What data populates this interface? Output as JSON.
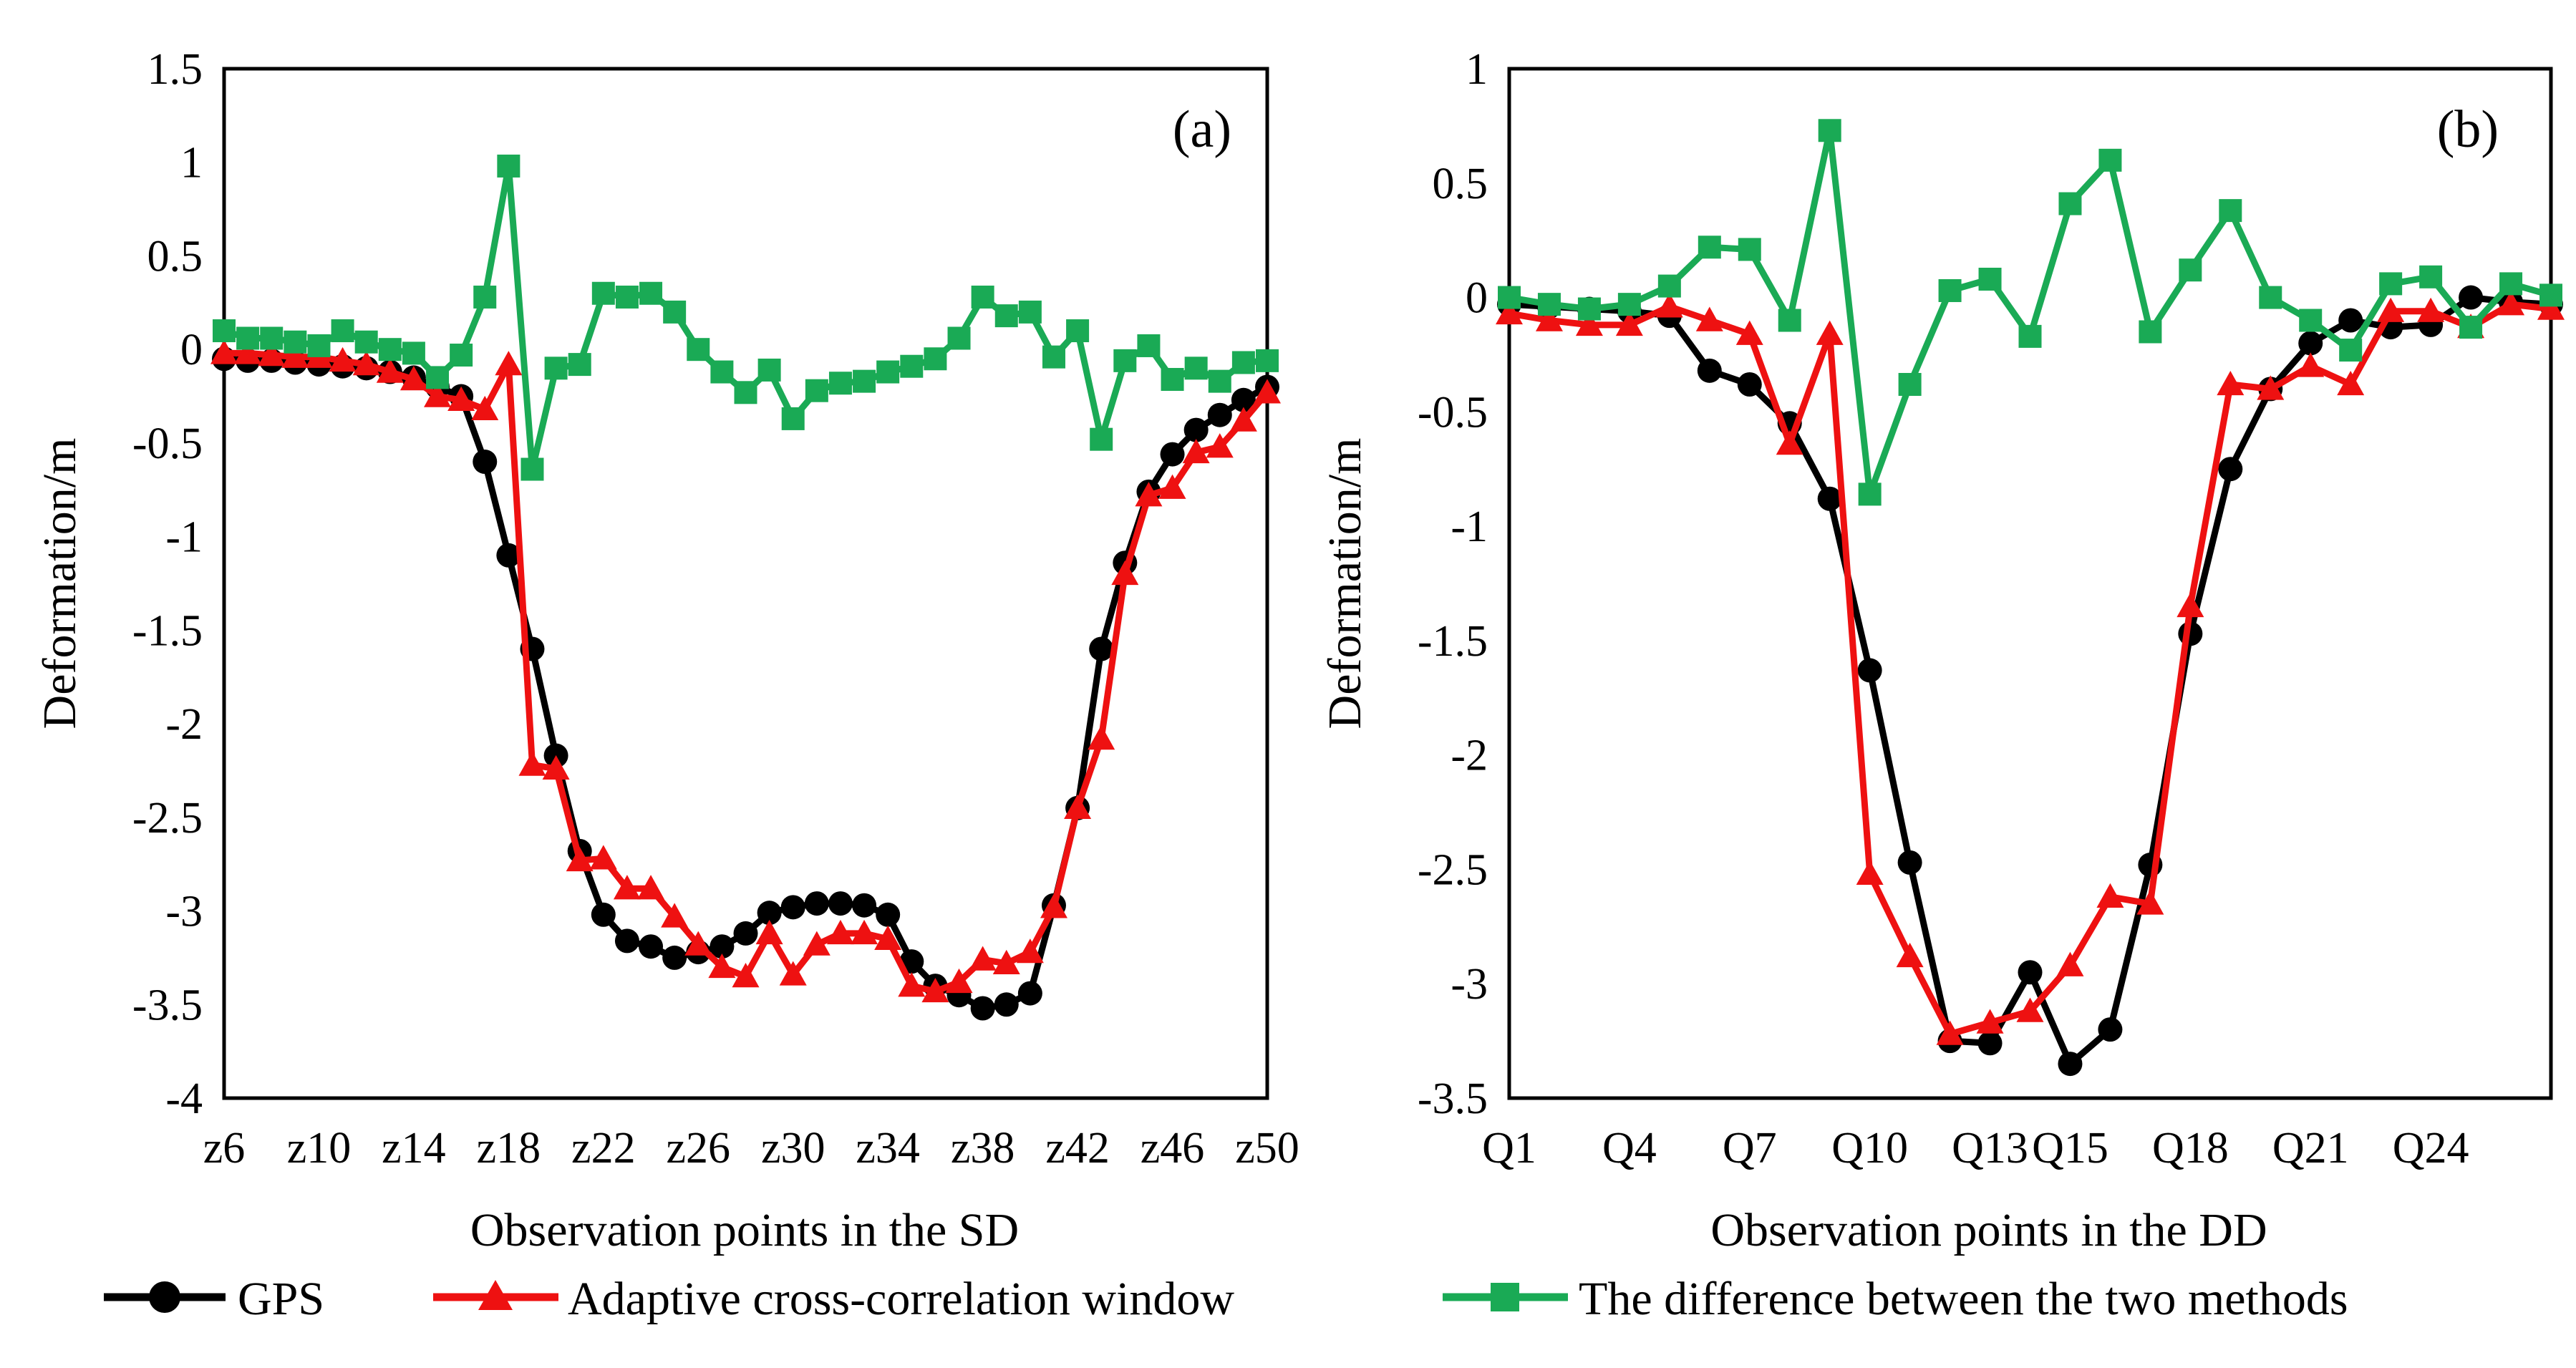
{
  "colors": {
    "gps": "#000000",
    "adaptive": "#ee1111",
    "difference": "#1aaa55"
  },
  "legend": {
    "gps": "GPS",
    "adaptive": "Adaptive cross-correlation window",
    "difference": "The difference between the two methods"
  },
  "chart_data": [
    {
      "type": "line",
      "panel_label": "(a)",
      "xlabel": "Observation points in the SD",
      "ylabel": "Deformation/m",
      "ylim": [
        -4,
        1.5
      ],
      "yticks": [
        1.5,
        1,
        0.5,
        0,
        -0.5,
        -1,
        -1.5,
        -2,
        -2.5,
        -3,
        -3.5,
        -4
      ],
      "ytick_labels": [
        "1.5",
        "1",
        "0.5",
        "0",
        "-0.5",
        "-1",
        "-1.5",
        "-2",
        "-2.5",
        "-3",
        "-3.5",
        "-4"
      ],
      "x_tick_labels": [
        "z6",
        "z10",
        "z14",
        "z18",
        "z22",
        "z26",
        "z30",
        "z34",
        "z38",
        "z42",
        "z46",
        "z50"
      ],
      "x_tick_positions": [
        6,
        10,
        14,
        18,
        22,
        26,
        30,
        34,
        38,
        42,
        46,
        50
      ],
      "xlim": [
        6,
        50
      ],
      "series": [
        {
          "name": "GPS",
          "x": [
            6,
            7,
            8,
            9,
            10,
            11,
            12,
            13,
            14,
            15,
            16,
            17,
            18,
            19,
            20,
            21,
            22,
            23,
            24,
            25,
            26,
            27,
            28,
            29,
            30,
            31,
            32,
            33,
            34,
            35,
            36,
            37,
            38,
            39,
            40,
            41,
            42,
            43,
            44,
            45,
            46,
            47,
            48,
            49,
            50
          ],
          "values": [
            -0.05,
            -0.06,
            -0.06,
            -0.07,
            -0.08,
            -0.09,
            -0.1,
            -0.12,
            -0.15,
            -0.2,
            -0.25,
            -0.6,
            -1.1,
            -1.6,
            -2.17,
            -2.68,
            -3.02,
            -3.16,
            -3.19,
            -3.25,
            -3.22,
            -3.19,
            -3.12,
            -3.01,
            -2.98,
            -2.96,
            -2.96,
            -2.97,
            -3.02,
            -3.27,
            -3.4,
            -3.45,
            -3.52,
            -3.5,
            -3.44,
            -2.97,
            -2.45,
            -1.6,
            -1.14,
            -0.76,
            -0.56,
            -0.43,
            -0.35,
            -0.27,
            -0.2
          ]
        },
        {
          "name": "Adaptive cross-correlation window",
          "x": [
            6,
            7,
            8,
            9,
            10,
            11,
            12,
            13,
            14,
            15,
            16,
            17,
            18,
            19,
            20,
            21,
            22,
            23,
            24,
            25,
            26,
            27,
            28,
            29,
            30,
            31,
            32,
            33,
            34,
            35,
            36,
            37,
            38,
            39,
            40,
            41,
            42,
            43,
            44,
            45,
            46,
            47,
            48,
            49,
            50
          ],
          "values": [
            -0.02,
            -0.02,
            -0.03,
            -0.04,
            -0.04,
            -0.06,
            -0.08,
            -0.12,
            -0.16,
            -0.25,
            -0.27,
            -0.32,
            -0.08,
            -2.22,
            -2.24,
            -2.73,
            -2.72,
            -2.88,
            -2.88,
            -3.03,
            -3.18,
            -3.3,
            -3.35,
            -3.12,
            -3.34,
            -3.18,
            -3.12,
            -3.12,
            -3.15,
            -3.4,
            -3.43,
            -3.38,
            -3.26,
            -3.28,
            -3.22,
            -2.98,
            -2.45,
            -2.08,
            -1.2,
            -0.78,
            -0.74,
            -0.55,
            -0.52,
            -0.38,
            -0.23
          ]
        },
        {
          "name": "The difference between the two methods",
          "x": [
            6,
            7,
            8,
            9,
            10,
            11,
            12,
            13,
            14,
            15,
            16,
            17,
            18,
            19,
            20,
            21,
            22,
            23,
            24,
            25,
            26,
            27,
            28,
            29,
            30,
            31,
            32,
            33,
            34,
            35,
            36,
            37,
            38,
            39,
            40,
            41,
            42,
            43,
            44,
            45,
            46,
            47,
            48,
            49,
            50
          ],
          "values": [
            0.1,
            0.06,
            0.06,
            0.04,
            0.02,
            0.1,
            0.04,
            0,
            -0.02,
            -0.15,
            -0.03,
            0.28,
            0.98,
            -0.64,
            -0.1,
            -0.08,
            0.3,
            0.28,
            0.3,
            0.2,
            0,
            -0.12,
            -0.23,
            -0.11,
            -0.37,
            -0.22,
            -0.18,
            -0.17,
            -0.12,
            -0.09,
            -0.05,
            0.06,
            0.28,
            0.18,
            0.2,
            -0.04,
            0.1,
            -0.48,
            -0.06,
            0.02,
            -0.16,
            -0.1,
            -0.17,
            -0.07,
            -0.06
          ]
        }
      ]
    },
    {
      "type": "line",
      "panel_label": "(b)",
      "xlabel": "Observation points in the DD",
      "ylabel": "Deformation/m",
      "ylim": [
        -3.5,
        1
      ],
      "yticks": [
        1,
        0.5,
        0,
        -0.5,
        -1,
        -1.5,
        -2,
        -2.5,
        -3,
        -3.5
      ],
      "ytick_labels": [
        "1",
        "0.5",
        "0",
        "-0.5",
        "-1",
        "-1.5",
        "-2",
        "-2.5",
        "-3",
        "-3.5"
      ],
      "x_tick_labels": [
        "Q1",
        "Q4",
        "Q7",
        "Q10",
        "Q13",
        "Q15",
        "Q18",
        "Q21",
        "Q24"
      ],
      "x_tick_positions": [
        1,
        4,
        7,
        10,
        13,
        15,
        18,
        21,
        24
      ],
      "xlim": [
        1,
        27
      ],
      "series": [
        {
          "name": "GPS",
          "x": [
            1,
            2,
            3,
            4,
            5,
            6,
            7,
            8,
            9,
            10,
            11,
            12,
            13,
            14,
            15,
            16,
            17,
            18,
            19,
            20,
            21,
            22,
            23,
            24,
            25,
            26,
            27
          ],
          "values": [
            -0.03,
            -0.04,
            -0.05,
            -0.06,
            -0.08,
            -0.32,
            -0.38,
            -0.55,
            -0.88,
            -1.63,
            -2.47,
            -3.25,
            -3.26,
            -2.95,
            -3.35,
            -3.2,
            -2.48,
            -1.47,
            -0.75,
            -0.4,
            -0.2,
            -0.1,
            -0.13,
            -0.12,
            0,
            -0.02,
            -0.03
          ]
        },
        {
          "name": "Adaptive cross-correlation window",
          "x": [
            1,
            2,
            3,
            4,
            5,
            6,
            7,
            8,
            9,
            10,
            11,
            12,
            13,
            14,
            15,
            16,
            17,
            18,
            19,
            20,
            21,
            22,
            23,
            24,
            25,
            26,
            27
          ],
          "values": [
            -0.07,
            -0.1,
            -0.12,
            -0.12,
            -0.04,
            -0.1,
            -0.16,
            -0.64,
            -0.16,
            -2.52,
            -2.88,
            -3.22,
            -3.17,
            -3.12,
            -2.92,
            -2.62,
            -2.65,
            -1.35,
            -0.38,
            -0.4,
            -0.3,
            -0.38,
            -0.06,
            -0.06,
            -0.13,
            -0.03,
            -0.05
          ]
        },
        {
          "name": "The difference between the two methods",
          "x": [
            1,
            2,
            3,
            4,
            5,
            6,
            7,
            8,
            9,
            10,
            11,
            12,
            13,
            14,
            15,
            16,
            17,
            18,
            19,
            20,
            21,
            22,
            23,
            24,
            25,
            26,
            27
          ],
          "values": [
            0,
            -0.03,
            -0.05,
            -0.03,
            0.05,
            0.22,
            0.21,
            -0.1,
            0.73,
            -0.86,
            -0.38,
            0.03,
            0.08,
            -0.17,
            0.41,
            0.6,
            -0.15,
            0.12,
            0.38,
            0,
            -0.1,
            -0.23,
            0.06,
            0.09,
            -0.13,
            0.06,
            0.01
          ]
        }
      ]
    }
  ]
}
